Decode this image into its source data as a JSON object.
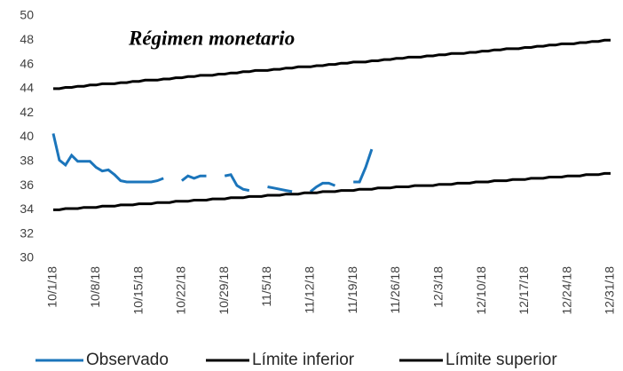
{
  "chart_data": {
    "type": "line",
    "title": "Régimen monetario",
    "categories": [
      "10/1/18",
      null,
      null,
      null,
      null,
      null,
      null,
      "10/8/18",
      null,
      null,
      null,
      null,
      null,
      null,
      "10/15/18",
      null,
      null,
      null,
      null,
      null,
      null,
      "10/22/18",
      null,
      null,
      null,
      null,
      null,
      null,
      "10/29/18",
      null,
      null,
      null,
      null,
      null,
      null,
      "11/5/18",
      null,
      null,
      null,
      null,
      null,
      null,
      "11/12/18",
      null,
      null,
      null,
      null,
      null,
      null,
      "11/19/18",
      null,
      null,
      null,
      null,
      null,
      null,
      "11/26/18",
      null,
      null,
      null,
      null,
      null,
      null,
      "12/3/18",
      null,
      null,
      null,
      null,
      null,
      null,
      "12/10/18",
      null,
      null,
      null,
      null,
      null,
      null,
      "12/17/18",
      null,
      null,
      null,
      null,
      null,
      null,
      "12/24/18",
      null,
      null,
      null,
      null,
      null,
      null,
      "12/31/18"
    ],
    "series": [
      {
        "name": "Observado",
        "color": "#1b75bb",
        "values": [
          40.3,
          38.1,
          37.7,
          38.5,
          38.0,
          38.0,
          38.0,
          37.5,
          37.2,
          37.3,
          36.9,
          36.4,
          36.3,
          36.3,
          36.3,
          36.3,
          36.3,
          36.4,
          36.6,
          null,
          null,
          36.4,
          36.8,
          36.6,
          36.8,
          36.8,
          null,
          null,
          36.8,
          36.9,
          36.0,
          35.7,
          35.6,
          null,
          null,
          35.9,
          35.8,
          35.7,
          35.6,
          35.5,
          null,
          null,
          35.5,
          35.9,
          36.2,
          36.2,
          36.0,
          null,
          null,
          36.3,
          36.3,
          37.5,
          39.0,
          null,
          null,
          null,
          null,
          null,
          null,
          null,
          null,
          null,
          null,
          null,
          null,
          null,
          null,
          null,
          null,
          null,
          null,
          null,
          null,
          null,
          null,
          null,
          null,
          null,
          null,
          null,
          null,
          null,
          null,
          null,
          null,
          null,
          null,
          null,
          null,
          null,
          null,
          null
        ]
      },
      {
        "name": "Límite inferior",
        "color": "#000000",
        "values": [
          34.0,
          34.0,
          34.1,
          34.1,
          34.1,
          34.2,
          34.2,
          34.2,
          34.3,
          34.3,
          34.3,
          34.4,
          34.4,
          34.4,
          34.5,
          34.5,
          34.5,
          34.6,
          34.6,
          34.6,
          34.7,
          34.7,
          34.7,
          34.8,
          34.8,
          34.8,
          34.9,
          34.9,
          34.9,
          35.0,
          35.0,
          35.0,
          35.1,
          35.1,
          35.1,
          35.2,
          35.2,
          35.2,
          35.3,
          35.3,
          35.3,
          35.4,
          35.4,
          35.4,
          35.5,
          35.5,
          35.5,
          35.6,
          35.6,
          35.6,
          35.7,
          35.7,
          35.7,
          35.8,
          35.8,
          35.8,
          35.9,
          35.9,
          35.9,
          36.0,
          36.0,
          36.0,
          36.0,
          36.1,
          36.1,
          36.1,
          36.2,
          36.2,
          36.2,
          36.3,
          36.3,
          36.3,
          36.4,
          36.4,
          36.4,
          36.5,
          36.5,
          36.5,
          36.6,
          36.6,
          36.6,
          36.7,
          36.7,
          36.7,
          36.8,
          36.8,
          36.8,
          36.9,
          36.9,
          36.9,
          37.0,
          37.0
        ]
      },
      {
        "name": "Límite superior",
        "color": "#000000",
        "values": [
          44.0,
          44.0,
          44.1,
          44.1,
          44.2,
          44.2,
          44.3,
          44.3,
          44.4,
          44.4,
          44.4,
          44.5,
          44.5,
          44.6,
          44.6,
          44.7,
          44.7,
          44.7,
          44.8,
          44.8,
          44.9,
          44.9,
          45.0,
          45.0,
          45.1,
          45.1,
          45.1,
          45.2,
          45.2,
          45.3,
          45.3,
          45.4,
          45.4,
          45.5,
          45.5,
          45.5,
          45.6,
          45.6,
          45.7,
          45.7,
          45.8,
          45.8,
          45.8,
          45.9,
          45.9,
          46.0,
          46.0,
          46.1,
          46.1,
          46.2,
          46.2,
          46.2,
          46.3,
          46.3,
          46.4,
          46.4,
          46.5,
          46.5,
          46.6,
          46.6,
          46.6,
          46.7,
          46.7,
          46.8,
          46.8,
          46.9,
          46.9,
          46.9,
          47.0,
          47.0,
          47.1,
          47.1,
          47.2,
          47.2,
          47.3,
          47.3,
          47.3,
          47.4,
          47.4,
          47.5,
          47.5,
          47.6,
          47.6,
          47.7,
          47.7,
          47.7,
          47.8,
          47.8,
          47.9,
          47.9,
          48.0,
          48.0
        ]
      }
    ],
    "ylim": [
      30,
      50
    ],
    "yticks": [
      30,
      32,
      34,
      36,
      38,
      40,
      42,
      44,
      46,
      48,
      50
    ],
    "grid": false
  }
}
